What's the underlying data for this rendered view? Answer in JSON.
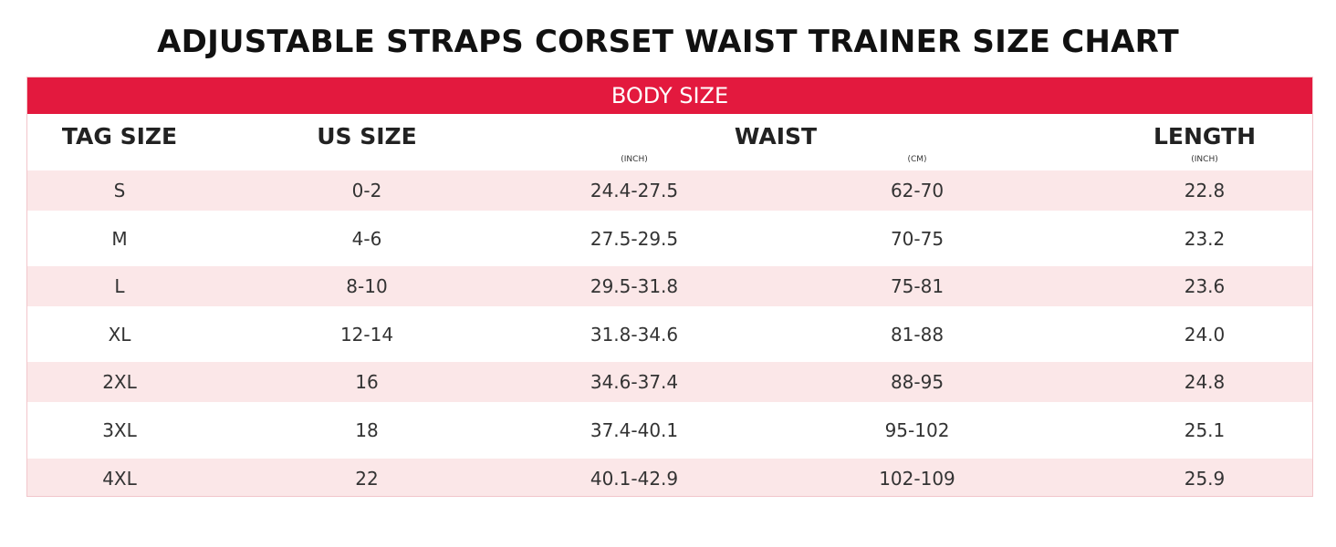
{
  "title": "ADJUSTABLE STRAPS CORSET WAIST TRAINER SIZE CHART",
  "colors": {
    "band": "#e3193e",
    "stripe": "#fbe7e8",
    "border": "#f2c6cb"
  },
  "table": {
    "band_label": "BODY SIZE",
    "headers": {
      "tag_size": "TAG SIZE",
      "us_size": "US SIZE",
      "waist": "WAIST",
      "length": "LENGTH"
    },
    "units": {
      "waist_inch": "(INCH)",
      "waist_cm": "(CM)",
      "length_inch": "(INCH)"
    },
    "rows": [
      {
        "tag": "S",
        "us": "0-2",
        "waist_inch": "24.4-27.5",
        "waist_cm": "62-70",
        "length": "22.8"
      },
      {
        "tag": "M",
        "us": "4-6",
        "waist_inch": "27.5-29.5",
        "waist_cm": "70-75",
        "length": "23.2"
      },
      {
        "tag": "L",
        "us": "8-10",
        "waist_inch": "29.5-31.8",
        "waist_cm": "75-81",
        "length": "23.6"
      },
      {
        "tag": "XL",
        "us": "12-14",
        "waist_inch": "31.8-34.6",
        "waist_cm": "81-88",
        "length": "24.0"
      },
      {
        "tag": "2XL",
        "us": "16",
        "waist_inch": "34.6-37.4",
        "waist_cm": "88-95",
        "length": "24.8"
      },
      {
        "tag": "3XL",
        "us": "18",
        "waist_inch": "37.4-40.1",
        "waist_cm": "95-102",
        "length": "25.1"
      },
      {
        "tag": "4XL",
        "us": "22",
        "waist_inch": "40.1-42.9",
        "waist_cm": "102-109",
        "length": "25.9"
      }
    ]
  }
}
